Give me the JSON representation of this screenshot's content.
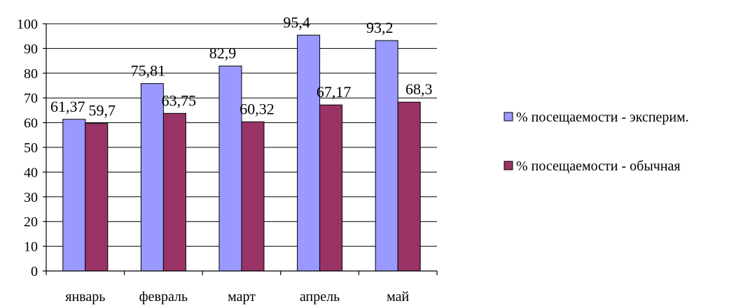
{
  "chart_data": {
    "type": "bar",
    "title": "",
    "xlabel": "",
    "ylabel": "",
    "ylim": [
      0,
      100
    ],
    "yticks": [
      0,
      10,
      20,
      30,
      40,
      50,
      60,
      70,
      80,
      90,
      100
    ],
    "grid": true,
    "legend": "right",
    "categories": [
      "январь",
      "февраль",
      "март",
      "апрель",
      "май"
    ],
    "series": [
      {
        "name": "% посещаемости - эксперим.",
        "color": "#9999ff",
        "values": [
          61.37,
          75.81,
          82.9,
          95.4,
          93.2
        ],
        "labels": [
          "61,37",
          "75,81",
          "82,9",
          "95,4",
          "93,2"
        ]
      },
      {
        "name": "% посещаемости - обычная",
        "color": "#993366",
        "values": [
          59.7,
          63.75,
          60.32,
          67.17,
          68.3
        ],
        "labels": [
          "59,7",
          "63,75",
          "60,32",
          "67,17",
          "68,3"
        ]
      }
    ]
  }
}
